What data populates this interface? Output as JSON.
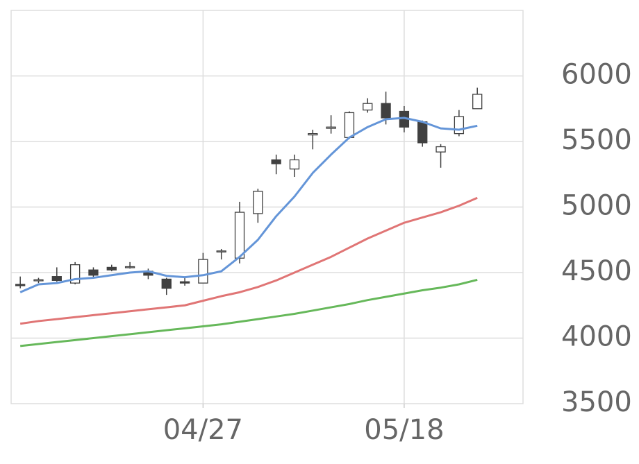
{
  "chart_data": {
    "type": "candlestick",
    "categories": [
      null,
      null,
      null,
      null,
      null,
      null,
      null,
      null,
      null,
      null,
      "04/27",
      null,
      null,
      null,
      null,
      null,
      null,
      null,
      null,
      null,
      null,
      "05/18",
      null,
      null,
      null,
      null
    ],
    "ohlc": {
      "open": [
        4410,
        4440,
        4470,
        4420,
        4520,
        4540,
        4540,
        4510,
        4450,
        4430,
        4420,
        4660,
        4610,
        4950,
        5360,
        5290,
        5550,
        5600,
        5530,
        5740,
        5790,
        5730,
        5650,
        5420,
        5560,
        5750
      ],
      "high": [
        4470,
        4460,
        4540,
        4580,
        4540,
        4560,
        4580,
        4530,
        4460,
        4460,
        4650,
        4680,
        5040,
        5140,
        5400,
        5400,
        5590,
        5700,
        5730,
        5830,
        5880,
        5770,
        5660,
        5480,
        5740,
        5910
      ],
      "low": [
        4380,
        4420,
        4430,
        4410,
        4460,
        4510,
        4530,
        4450,
        4330,
        4400,
        4420,
        4600,
        4570,
        4880,
        5250,
        5230,
        5440,
        5560,
        5520,
        5720,
        5630,
        5570,
        5460,
        5300,
        5540,
        5750
      ],
      "close": [
        4400,
        4445,
        4440,
        4560,
        4480,
        4520,
        4545,
        4480,
        4380,
        4420,
        4600,
        4665,
        4960,
        5120,
        5330,
        5360,
        5560,
        5610,
        5720,
        5790,
        5680,
        5610,
        5490,
        5460,
        5690,
        5860
      ]
    },
    "up_color": "#ffffff",
    "down_color": "#404040",
    "edge_color": "#404040",
    "lines": [
      {
        "color": "#6495d8",
        "values": [
          4350,
          4410,
          4420,
          4450,
          4460,
          4480,
          4500,
          4510,
          4475,
          4465,
          4480,
          4510,
          4620,
          4750,
          4930,
          5080,
          5260,
          5400,
          5530,
          5610,
          5670,
          5680,
          5650,
          5600,
          5590,
          5620
        ]
      },
      {
        "color": "#e07575",
        "values": [
          4110,
          4130,
          4145,
          4160,
          4175,
          4190,
          4205,
          4220,
          4235,
          4250,
          4285,
          4320,
          4350,
          4390,
          4440,
          4500,
          4560,
          4620,
          4690,
          4760,
          4820,
          4880,
          4920,
          4960,
          5010,
          5070
        ]
      },
      {
        "color": "#66b85a",
        "values": [
          3940,
          3955,
          3970,
          3985,
          4000,
          4015,
          4030,
          4045,
          4060,
          4075,
          4090,
          4105,
          4125,
          4145,
          4165,
          4185,
          4210,
          4235,
          4260,
          4290,
          4315,
          4340,
          4365,
          4385,
          4410,
          4445
        ]
      }
    ],
    "ylim": [
      3500,
      6500
    ],
    "yticks": [
      3500,
      4000,
      4500,
      5000,
      5500,
      6000
    ],
    "grid": true
  }
}
